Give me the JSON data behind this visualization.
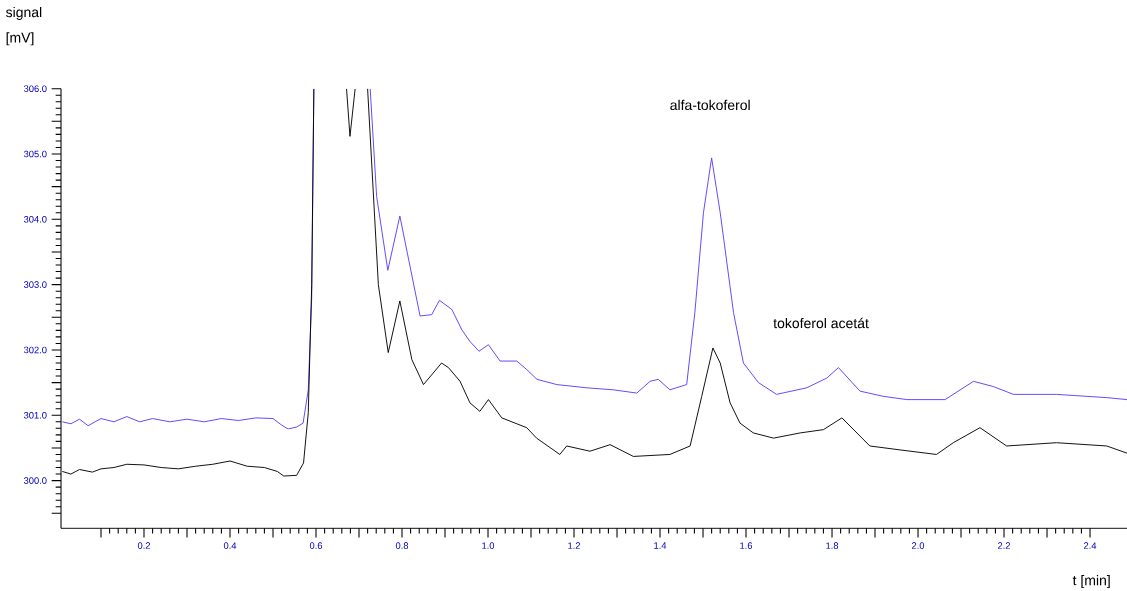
{
  "chart_data": {
    "type": "line",
    "xlabel": "t [min]",
    "ylabel": "signal [mV]",
    "annotations": [
      "alfa-tokoferol",
      "tokoferol acetát"
    ],
    "series": [
      {
        "color": "#5b3dff",
        "x": [
          0.01,
          0.03,
          0.05,
          0.07,
          0.1,
          0.13,
          0.16,
          0.19,
          0.22,
          0.26,
          0.3,
          0.34,
          0.38,
          0.42,
          0.46,
          0.5,
          0.52,
          0.535,
          0.555,
          0.57,
          0.582,
          0.59,
          0.595,
          0.6,
          0.726,
          0.741,
          0.767,
          0.795,
          0.842,
          0.869,
          0.887,
          0.916,
          0.939,
          0.958,
          0.979,
          1.001,
          1.028,
          1.067,
          1.09,
          1.114,
          1.16,
          1.23,
          1.291,
          1.346,
          1.377,
          1.396,
          1.423,
          1.462,
          1.481,
          1.501,
          1.52,
          1.54,
          1.571,
          1.594,
          1.629,
          1.671,
          1.741,
          1.788,
          1.815,
          1.865,
          1.919,
          1.974,
          2.063,
          2.129,
          2.175,
          2.222,
          2.322,
          2.439,
          2.486
        ],
        "values": [
          300.9,
          300.87,
          300.94,
          300.84,
          300.95,
          300.9,
          300.98,
          300.9,
          300.95,
          300.9,
          300.94,
          300.9,
          300.95,
          300.92,
          300.96,
          300.95,
          300.85,
          300.79,
          300.82,
          300.88,
          301.39,
          302.8,
          306,
          null,
          306,
          304.35,
          303.22,
          304.05,
          302.52,
          302.54,
          302.76,
          302.62,
          302.31,
          302.13,
          301.98,
          302.08,
          301.83,
          301.83,
          301.7,
          301.55,
          301.47,
          301.42,
          301.39,
          301.34,
          301.52,
          301.55,
          301.39,
          301.47,
          302.57,
          304.1,
          304.94,
          304.1,
          302.57,
          301.8,
          301.5,
          301.32,
          301.42,
          301.57,
          301.73,
          301.37,
          301.29,
          301.24,
          301.24,
          301.52,
          301.44,
          301.32,
          301.32,
          301.27,
          301.24
        ]
      },
      {
        "color": "#000000",
        "x": [
          0.01,
          0.03,
          0.05,
          0.08,
          0.1,
          0.13,
          0.16,
          0.2,
          0.24,
          0.28,
          0.32,
          0.36,
          0.4,
          0.44,
          0.48,
          0.51,
          0.525,
          0.555,
          0.571,
          0.582,
          0.59,
          0.595,
          0.63,
          0.671,
          0.679,
          0.691,
          0.7,
          0.72,
          0.745,
          0.768,
          0.795,
          0.823,
          0.85,
          0.892,
          0.908,
          0.935,
          0.958,
          0.981,
          1.001,
          1.032,
          1.09,
          1.113,
          1.167,
          1.183,
          1.237,
          1.284,
          1.338,
          1.423,
          1.47,
          1.497,
          1.523,
          1.54,
          1.563,
          1.586,
          1.617,
          1.664,
          1.726,
          1.78,
          1.823,
          1.888,
          1.958,
          2.043,
          2.082,
          2.144,
          2.206,
          2.322,
          2.439,
          2.486
        ],
        "values": [
          300.14,
          300.1,
          300.17,
          300.13,
          300.18,
          300.2,
          300.25,
          300.24,
          300.2,
          300.18,
          300.22,
          300.25,
          300.3,
          300.22,
          300.2,
          300.14,
          300.07,
          300.08,
          300.27,
          301.04,
          303.0,
          306,
          null,
          306,
          305.27,
          306,
          null,
          306,
          303.0,
          301.96,
          302.75,
          301.85,
          301.47,
          301.8,
          301.73,
          301.52,
          301.19,
          301.06,
          301.24,
          300.96,
          300.81,
          300.65,
          300.4,
          300.53,
          300.45,
          300.55,
          300.37,
          300.4,
          300.53,
          301.29,
          302.03,
          301.8,
          301.19,
          300.88,
          300.73,
          300.65,
          300.73,
          300.78,
          300.96,
          300.53,
          300.47,
          300.4,
          300.58,
          300.81,
          300.53,
          300.58,
          300.53,
          300.42
        ]
      }
    ],
    "xlim": [
      0.007,
      2.486
    ],
    "ylim": [
      299.27,
      306
    ],
    "xticks": [
      {
        "value": 0.1,
        "label": null
      },
      {
        "value": 0.2,
        "label": "0.2"
      },
      {
        "value": 0.3,
        "label": null
      },
      {
        "value": 0.4,
        "label": "0.4"
      },
      {
        "value": 0.5,
        "label": null
      },
      {
        "value": 0.6,
        "label": "0.6"
      },
      {
        "value": 0.7,
        "label": null
      },
      {
        "value": 0.8,
        "label": "0.8"
      },
      {
        "value": 0.9,
        "label": null
      },
      {
        "value": 1.0,
        "label": "1.0"
      },
      {
        "value": 1.1,
        "label": null
      },
      {
        "value": 1.2,
        "label": "1.2"
      },
      {
        "value": 1.3,
        "label": null
      },
      {
        "value": 1.4,
        "label": "1.4"
      },
      {
        "value": 1.5,
        "label": null
      },
      {
        "value": 1.6,
        "label": "1.6"
      },
      {
        "value": 1.7,
        "label": null
      },
      {
        "value": 1.8,
        "label": "1.8"
      },
      {
        "value": 1.9,
        "label": null
      },
      {
        "value": 2.0,
        "label": "2.0"
      },
      {
        "value": 2.1,
        "label": null
      },
      {
        "value": 2.2,
        "label": "2.2"
      },
      {
        "value": 2.3,
        "label": null
      },
      {
        "value": 2.4,
        "label": "2.4"
      }
    ],
    "yticks": [
      {
        "value": 299.5,
        "label": null
      },
      {
        "value": 300,
        "label": "300.0"
      },
      {
        "value": 300.5,
        "label": null
      },
      {
        "value": 301,
        "label": "301.0"
      },
      {
        "value": 301.5,
        "label": null
      },
      {
        "value": 302,
        "label": "302.0"
      },
      {
        "value": 302.5,
        "label": null
      },
      {
        "value": 303,
        "label": "303.0"
      },
      {
        "value": 303.5,
        "label": null
      },
      {
        "value": 304,
        "label": "304.0"
      },
      {
        "value": 304.5,
        "label": null
      },
      {
        "value": 305,
        "label": "305.0"
      },
      {
        "value": 305.5,
        "label": null
      },
      {
        "value": 306,
        "label": "306.0"
      }
    ]
  }
}
